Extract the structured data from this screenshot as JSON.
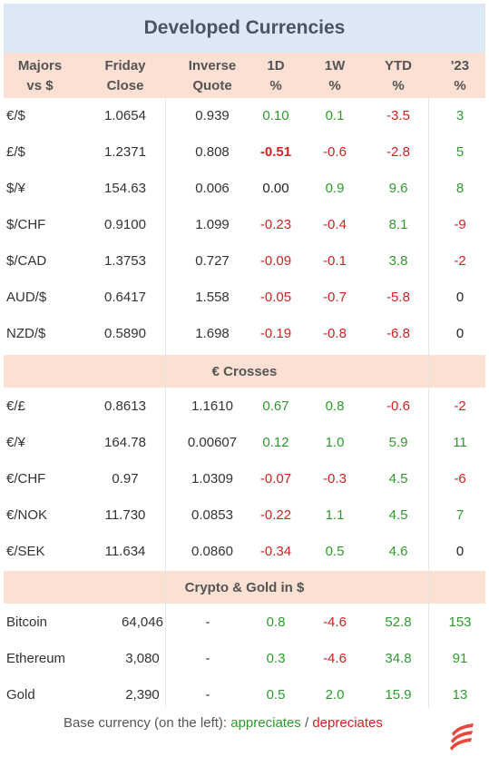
{
  "title": "Developed Currencies",
  "headers": [
    [
      "Majors",
      "vs $"
    ],
    [
      "Friday",
      "Close"
    ],
    [
      "Inverse",
      "Quote"
    ],
    [
      "1D",
      "%"
    ],
    [
      "1W",
      "%"
    ],
    [
      "YTD",
      "%"
    ],
    [
      "'23",
      "%"
    ]
  ],
  "sections": [
    {
      "label": "",
      "rows": [
        {
          "cells": [
            "€/$",
            "1.0654",
            "0.939",
            "0.10",
            "0.1",
            "-3.5",
            "3"
          ],
          "tone": [
            "",
            "",
            "",
            "pos",
            "pos",
            "neg",
            "pos"
          ]
        },
        {
          "cells": [
            "£/$",
            "1.2371",
            "0.808",
            "-0.51",
            "-0.6",
            "-2.8",
            "5"
          ],
          "tone": [
            "",
            "",
            "",
            "neg-bold",
            "neg",
            "neg",
            "pos"
          ]
        },
        {
          "cells": [
            "$/¥",
            "154.63",
            "0.006",
            "0.00",
            "0.9",
            "9.6",
            "8"
          ],
          "tone": [
            "",
            "",
            "",
            "neu",
            "pos",
            "pos",
            "pos"
          ]
        },
        {
          "cells": [
            "$/CHF",
            "0.9100",
            "1.099",
            "-0.23",
            "-0.4",
            "8.1",
            "-9"
          ],
          "tone": [
            "",
            "",
            "",
            "neg",
            "neg",
            "pos",
            "neg"
          ]
        },
        {
          "cells": [
            "$/CAD",
            "1.3753",
            "0.727",
            "-0.09",
            "-0.1",
            "3.8",
            "-2"
          ],
          "tone": [
            "",
            "",
            "",
            "neg",
            "neg",
            "pos",
            "neg"
          ]
        },
        {
          "cells": [
            "AUD/$",
            "0.6417",
            "1.558",
            "-0.05",
            "-0.7",
            "-5.8",
            "0"
          ],
          "tone": [
            "",
            "",
            "",
            "neg",
            "neg",
            "neg",
            "neu"
          ]
        },
        {
          "cells": [
            "NZD/$",
            "0.5890",
            "1.698",
            "-0.19",
            "-0.8",
            "-6.8",
            "0"
          ],
          "tone": [
            "",
            "",
            "",
            "neg",
            "neg",
            "neg",
            "neu"
          ]
        }
      ]
    },
    {
      "label": "€ Crosses",
      "rows": [
        {
          "cells": [
            "€/£",
            "0.8613",
            "1.1610",
            "0.67",
            "0.8",
            "-0.6",
            "-2"
          ],
          "tone": [
            "",
            "",
            "",
            "pos",
            "pos",
            "neg",
            "neg"
          ]
        },
        {
          "cells": [
            "€/¥",
            "164.78",
            "0.00607",
            "0.12",
            "1.0",
            "5.9",
            "11"
          ],
          "tone": [
            "",
            "",
            "",
            "pos",
            "pos",
            "pos",
            "pos"
          ]
        },
        {
          "cells": [
            "€/CHF",
            "0.97",
            "1.0309",
            "-0.07",
            "-0.3",
            "4.5",
            "-6"
          ],
          "tone": [
            "",
            "",
            "",
            "neg",
            "neg",
            "pos",
            "neg"
          ]
        },
        {
          "cells": [
            "€/NOK",
            "11.730",
            "0.0853",
            "-0.22",
            "1.1",
            "4.5",
            "7"
          ],
          "tone": [
            "",
            "",
            "",
            "neg",
            "pos",
            "pos",
            "pos"
          ]
        },
        {
          "cells": [
            "€/SEK",
            "11.634",
            "0.0860",
            "-0.34",
            "0.5",
            "4.6",
            "0"
          ],
          "tone": [
            "",
            "",
            "",
            "neg",
            "pos",
            "pos",
            "neu"
          ]
        }
      ]
    },
    {
      "label": "Crypto & Gold in $",
      "rows": [
        {
          "cells": [
            "Bitcoin",
            "64,046",
            "-",
            "0.8",
            "-4.6",
            "52.8",
            "153"
          ],
          "tone": [
            "",
            "",
            "",
            "pos",
            "neg",
            "pos",
            "pos"
          ]
        },
        {
          "cells": [
            "Ethereum",
            "3,080",
            "-",
            "0.3",
            "-4.6",
            "34.8",
            "91"
          ],
          "tone": [
            "",
            "",
            "",
            "pos",
            "neg",
            "pos",
            "pos"
          ]
        },
        {
          "cells": [
            "Gold",
            "2,390",
            "-",
            "0.5",
            "2.0",
            "15.9",
            "13"
          ],
          "tone": [
            "",
            "",
            "",
            "pos",
            "pos",
            "pos",
            "pos"
          ]
        }
      ]
    }
  ],
  "footer": {
    "prefix": "Base currency (on the left): ",
    "appreciates": "appreciates",
    "separator": " / ",
    "depreciates": "depreciates"
  },
  "colors": {
    "positive": "#2e9a2e",
    "negative": "#d42020",
    "header_bg": "#dce9f5",
    "section_bg": "#fbe0d3"
  },
  "logo_icon": "flame-stripes-logo-icon"
}
